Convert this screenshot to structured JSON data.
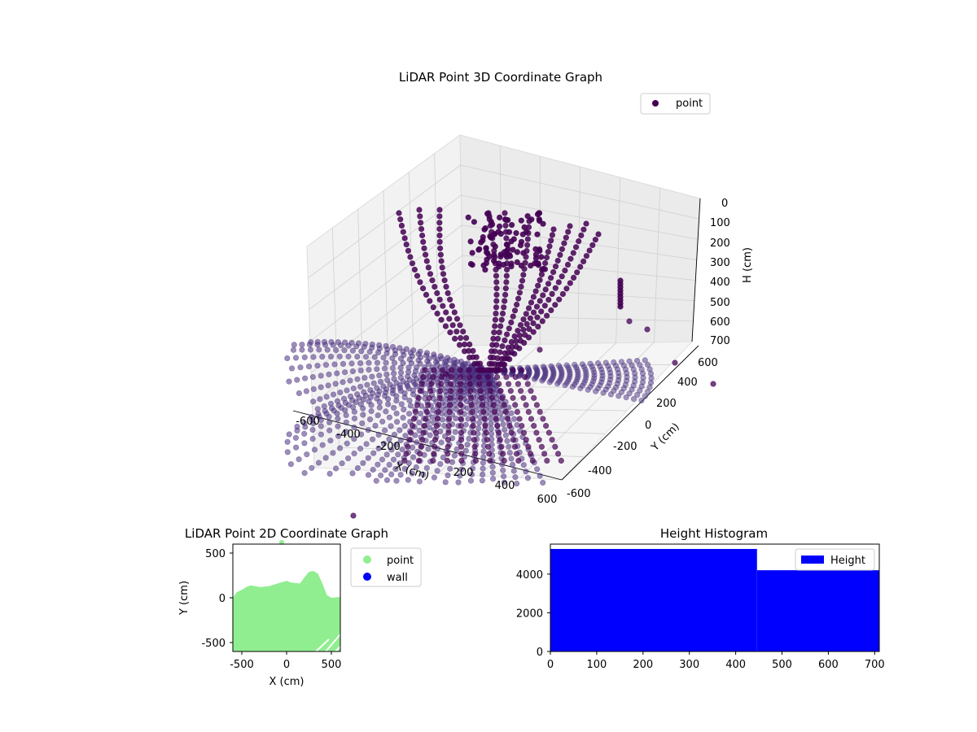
{
  "chart_data": [
    {
      "type": "scatter",
      "projection": "3d",
      "title": "LiDAR Point 3D Coordinate Graph",
      "xlabel": "X (cm)",
      "ylabel": "Y (cm)",
      "zlabel": "H (cm)",
      "x_ticks": [
        -600,
        -400,
        -200,
        200,
        400,
        600
      ],
      "y_ticks": [
        -600,
        -400,
        -200,
        0,
        200,
        400,
        600
      ],
      "z_ticks": [
        0,
        100,
        200,
        300,
        400,
        500,
        600,
        700
      ],
      "xlim": [
        -600,
        600
      ],
      "ylim": [
        -600,
        600
      ],
      "zlim": [
        0,
        700
      ],
      "z_inverted": true,
      "legend": {
        "labels": [
          "point"
        ],
        "placement": "top-right"
      },
      "series": [
        {
          "name": "point",
          "color": "#440154",
          "description_points": [
            {
              "x": -200,
              "y": 500,
              "h": 40,
              "r": 500
            },
            {
              "x": 0,
              "y": 0,
              "h": 600
            }
          ]
        }
      ],
      "grid": true
    },
    {
      "type": "scatter",
      "title": "LiDAR Point 2D Coordinate Graph",
      "xlabel": "X (cm)",
      "ylabel": "Y (cm)",
      "x_ticks": [
        -500,
        0,
        500
      ],
      "y_ticks": [
        -500,
        0,
        500
      ],
      "xlim": [
        -600,
        600
      ],
      "ylim": [
        -600,
        600
      ],
      "legend": {
        "labels": [
          "point",
          "wall"
        ],
        "placement": "outside-right"
      },
      "series": [
        {
          "name": "point",
          "color": "#90ee90"
        },
        {
          "name": "wall",
          "color": "#0000ff"
        }
      ],
      "point_region_top_edge": [
        {
          "x": -600,
          "y": 0
        },
        {
          "x": -560,
          "y": 60
        },
        {
          "x": -500,
          "y": 90
        },
        {
          "x": -450,
          "y": 120
        },
        {
          "x": -400,
          "y": 140
        },
        {
          "x": -300,
          "y": 120
        },
        {
          "x": -200,
          "y": 130
        },
        {
          "x": -100,
          "y": 160
        },
        {
          "x": 0,
          "y": 190
        },
        {
          "x": 50,
          "y": 170
        },
        {
          "x": 150,
          "y": 160
        },
        {
          "x": 200,
          "y": 230
        },
        {
          "x": 250,
          "y": 290
        },
        {
          "x": 300,
          "y": 300
        },
        {
          "x": 350,
          "y": 270
        },
        {
          "x": 400,
          "y": 160
        },
        {
          "x": 450,
          "y": 30
        },
        {
          "x": 500,
          "y": 0
        },
        {
          "x": 600,
          "y": 10
        }
      ],
      "grid": false
    },
    {
      "type": "bar",
      "subtype": "histogram",
      "title": "Height Histogram",
      "xlabel": "",
      "ylabel": "",
      "x_ticks": [
        0,
        100,
        200,
        300,
        400,
        500,
        600,
        700
      ],
      "y_ticks": [
        0,
        2000,
        4000
      ],
      "xlim": [
        0,
        710
      ],
      "ylim": [
        0,
        5550
      ],
      "legend": {
        "labels": [
          "Height"
        ],
        "placement": "top-right"
      },
      "series": [
        {
          "name": "Height",
          "color": "#0000ff",
          "bins": [
            {
              "start": 0,
              "end": 446,
              "count": 5300
            },
            {
              "start": 446,
              "end": 710,
              "count": 4200
            }
          ]
        }
      ],
      "grid": false
    }
  ]
}
